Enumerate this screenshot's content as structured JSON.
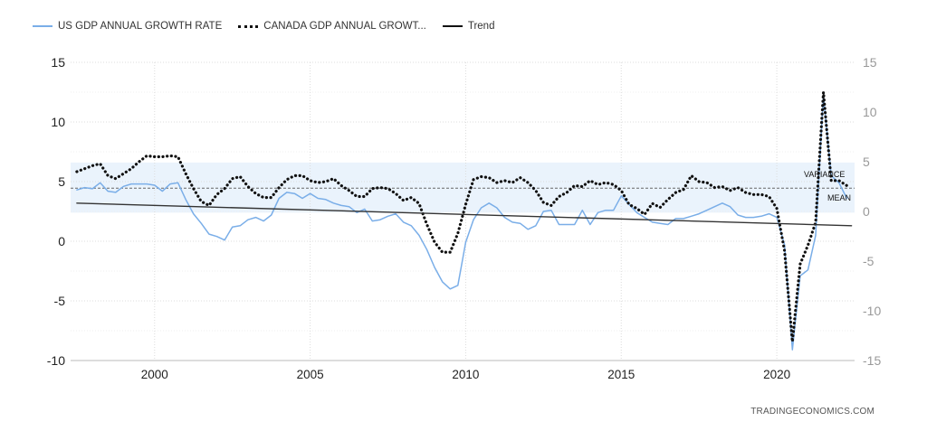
{
  "legend": {
    "us_label": "US GDP ANNUAL GROWTH RATE",
    "canada_label": "CANADA GDP ANNUAL GROWT...",
    "trend_label": "Trend"
  },
  "annotations": {
    "variance": "VARIANCE",
    "mean": "MEAN"
  },
  "source": "TRADINGECONOMICS.COM",
  "colors": {
    "us": "#7aaee8",
    "canada": "#111111",
    "trend": "#333333",
    "variance_band": "#eaf3fc"
  },
  "chart_data": {
    "type": "line",
    "x_axis": {
      "range": [
        1997.3,
        2022.5
      ],
      "ticks": [
        "2000",
        "2005",
        "2010",
        "2015",
        "2020"
      ]
    },
    "y_left": {
      "range": [
        -10,
        15
      ],
      "ticks": [
        "15",
        "10",
        "5",
        "0",
        "-5",
        "-10"
      ]
    },
    "y_right": {
      "range": [
        -15,
        15
      ],
      "ticks": [
        "15",
        "10",
        "5",
        "0",
        "-5",
        "-10",
        "-15"
      ]
    },
    "grid": true,
    "legend_position": "top-left",
    "series": [
      {
        "name": "US GDP ANNUAL GROWTH RATE",
        "axis": "left",
        "points": [
          [
            1997.5,
            4.3
          ],
          [
            1997.75,
            4.5
          ],
          [
            1998.0,
            4.4
          ],
          [
            1998.25,
            4.9
          ],
          [
            1998.5,
            4.2
          ],
          [
            1998.75,
            4.1
          ],
          [
            1999.0,
            4.6
          ],
          [
            1999.25,
            4.8
          ],
          [
            1999.5,
            4.8
          ],
          [
            1999.75,
            4.8
          ],
          [
            2000.0,
            4.7
          ],
          [
            2000.25,
            4.2
          ],
          [
            2000.5,
            4.8
          ],
          [
            2000.75,
            4.9
          ],
          [
            2001.0,
            3.5
          ],
          [
            2001.25,
            2.3
          ],
          [
            2001.5,
            1.5
          ],
          [
            2001.75,
            0.6
          ],
          [
            2002.0,
            0.4
          ],
          [
            2002.25,
            0.1
          ],
          [
            2002.5,
            1.2
          ],
          [
            2002.75,
            1.3
          ],
          [
            2003.0,
            1.8
          ],
          [
            2003.25,
            2.0
          ],
          [
            2003.5,
            1.7
          ],
          [
            2003.75,
            2.2
          ],
          [
            2004.0,
            3.6
          ],
          [
            2004.25,
            4.1
          ],
          [
            2004.5,
            4.0
          ],
          [
            2004.75,
            3.6
          ],
          [
            2005.0,
            4.0
          ],
          [
            2005.25,
            3.6
          ],
          [
            2005.5,
            3.5
          ],
          [
            2005.75,
            3.2
          ],
          [
            2006.0,
            3.0
          ],
          [
            2006.25,
            2.9
          ],
          [
            2006.5,
            2.4
          ],
          [
            2006.75,
            2.7
          ],
          [
            2007.0,
            1.7
          ],
          [
            2007.25,
            1.8
          ],
          [
            2007.5,
            2.1
          ],
          [
            2007.75,
            2.3
          ],
          [
            2008.0,
            1.6
          ],
          [
            2008.25,
            1.3
          ],
          [
            2008.5,
            0.5
          ],
          [
            2008.75,
            -0.7
          ],
          [
            2009.0,
            -2.2
          ],
          [
            2009.25,
            -3.4
          ],
          [
            2009.5,
            -4.0
          ],
          [
            2009.75,
            -3.7
          ],
          [
            2010.0,
            -0.1
          ],
          [
            2010.25,
            1.8
          ],
          [
            2010.5,
            2.8
          ],
          [
            2010.75,
            3.2
          ],
          [
            2011.0,
            2.8
          ],
          [
            2011.25,
            2.0
          ],
          [
            2011.5,
            1.6
          ],
          [
            2011.75,
            1.5
          ],
          [
            2012.0,
            1.0
          ],
          [
            2012.25,
            1.3
          ],
          [
            2012.5,
            2.5
          ],
          [
            2012.75,
            2.6
          ],
          [
            2013.0,
            1.4
          ],
          [
            2013.25,
            1.4
          ],
          [
            2013.5,
            1.4
          ],
          [
            2013.75,
            2.6
          ],
          [
            2014.0,
            1.4
          ],
          [
            2014.25,
            2.4
          ],
          [
            2014.5,
            2.6
          ],
          [
            2014.75,
            2.6
          ],
          [
            2015.0,
            3.8
          ],
          [
            2015.25,
            3.1
          ],
          [
            2015.5,
            2.4
          ],
          [
            2015.75,
            2.0
          ],
          [
            2016.0,
            1.6
          ],
          [
            2016.25,
            1.5
          ],
          [
            2016.5,
            1.4
          ],
          [
            2016.75,
            1.9
          ],
          [
            2017.0,
            1.9
          ],
          [
            2017.25,
            2.1
          ],
          [
            2017.5,
            2.3
          ],
          [
            2017.75,
            2.6
          ],
          [
            2018.0,
            2.9
          ],
          [
            2018.25,
            3.2
          ],
          [
            2018.5,
            2.9
          ],
          [
            2018.75,
            2.2
          ],
          [
            2019.0,
            2.0
          ],
          [
            2019.25,
            2.0
          ],
          [
            2019.5,
            2.1
          ],
          [
            2019.75,
            2.3
          ],
          [
            2020.0,
            2.0
          ],
          [
            2020.25,
            -0.3
          ],
          [
            2020.5,
            -9.1
          ],
          [
            2020.75,
            -2.9
          ],
          [
            2021.0,
            -2.4
          ],
          [
            2021.25,
            0.5
          ],
          [
            2021.5,
            12.2
          ],
          [
            2021.75,
            5.5
          ],
          [
            2022.0,
            4.9
          ],
          [
            2022.25,
            3.6
          ]
        ]
      },
      {
        "name": "CANADA GDP ANNUAL GROWT...",
        "axis": "right",
        "points": [
          [
            1997.5,
            4.0
          ],
          [
            1997.75,
            4.3
          ],
          [
            1998.0,
            4.6
          ],
          [
            1998.25,
            4.8
          ],
          [
            1998.5,
            3.6
          ],
          [
            1998.75,
            3.3
          ],
          [
            1999.0,
            3.8
          ],
          [
            1999.25,
            4.3
          ],
          [
            1999.5,
            5.0
          ],
          [
            1999.75,
            5.6
          ],
          [
            2000.0,
            5.5
          ],
          [
            2000.25,
            5.5
          ],
          [
            2000.5,
            5.6
          ],
          [
            2000.75,
            5.5
          ],
          [
            2001.0,
            3.8
          ],
          [
            2001.25,
            2.3
          ],
          [
            2001.5,
            1.0
          ],
          [
            2001.75,
            0.6
          ],
          [
            2002.0,
            1.7
          ],
          [
            2002.25,
            2.3
          ],
          [
            2002.5,
            3.3
          ],
          [
            2002.75,
            3.5
          ],
          [
            2003.0,
            2.5
          ],
          [
            2003.25,
            1.8
          ],
          [
            2003.5,
            1.4
          ],
          [
            2003.75,
            1.4
          ],
          [
            2004.0,
            2.4
          ],
          [
            2004.25,
            3.2
          ],
          [
            2004.5,
            3.6
          ],
          [
            2004.75,
            3.6
          ],
          [
            2005.0,
            3.1
          ],
          [
            2005.25,
            2.9
          ],
          [
            2005.5,
            3.0
          ],
          [
            2005.75,
            3.3
          ],
          [
            2006.0,
            2.6
          ],
          [
            2006.25,
            2.1
          ],
          [
            2006.5,
            1.5
          ],
          [
            2006.75,
            1.5
          ],
          [
            2007.0,
            2.3
          ],
          [
            2007.25,
            2.4
          ],
          [
            2007.5,
            2.3
          ],
          [
            2007.75,
            1.8
          ],
          [
            2008.0,
            1.1
          ],
          [
            2008.25,
            1.4
          ],
          [
            2008.5,
            0.8
          ],
          [
            2008.75,
            -1.3
          ],
          [
            2009.0,
            -3.1
          ],
          [
            2009.25,
            -4.1
          ],
          [
            2009.5,
            -4.1
          ],
          [
            2009.75,
            -2.2
          ],
          [
            2010.0,
            0.7
          ],
          [
            2010.25,
            3.2
          ],
          [
            2010.5,
            3.5
          ],
          [
            2010.75,
            3.4
          ],
          [
            2011.0,
            2.9
          ],
          [
            2011.25,
            3.1
          ],
          [
            2011.5,
            2.9
          ],
          [
            2011.75,
            3.4
          ],
          [
            2012.0,
            2.9
          ],
          [
            2012.25,
            2.1
          ],
          [
            2012.5,
            0.9
          ],
          [
            2012.75,
            0.6
          ],
          [
            2013.0,
            1.5
          ],
          [
            2013.25,
            1.9
          ],
          [
            2013.5,
            2.6
          ],
          [
            2013.75,
            2.5
          ],
          [
            2014.0,
            3.1
          ],
          [
            2014.25,
            2.7
          ],
          [
            2014.5,
            2.9
          ],
          [
            2014.75,
            2.7
          ],
          [
            2015.0,
            2.1
          ],
          [
            2015.25,
            0.7
          ],
          [
            2015.5,
            0.3
          ],
          [
            2015.75,
            -0.3
          ],
          [
            2016.0,
            0.8
          ],
          [
            2016.25,
            0.4
          ],
          [
            2016.5,
            1.2
          ],
          [
            2016.75,
            1.9
          ],
          [
            2017.0,
            2.2
          ],
          [
            2017.25,
            3.6
          ],
          [
            2017.5,
            3.0
          ],
          [
            2017.75,
            2.9
          ],
          [
            2018.0,
            2.4
          ],
          [
            2018.25,
            2.5
          ],
          [
            2018.5,
            2.1
          ],
          [
            2018.75,
            2.4
          ],
          [
            2019.0,
            1.9
          ],
          [
            2019.25,
            1.7
          ],
          [
            2019.5,
            1.7
          ],
          [
            2019.75,
            1.5
          ],
          [
            2020.0,
            0.3
          ],
          [
            2020.25,
            -4.0
          ],
          [
            2020.5,
            -13.1
          ],
          [
            2020.75,
            -5.3
          ],
          [
            2021.0,
            -3.4
          ],
          [
            2021.25,
            -1.1
          ],
          [
            2021.5,
            12.0
          ],
          [
            2021.75,
            3.1
          ],
          [
            2022.0,
            3.1
          ],
          [
            2022.25,
            2.6
          ]
        ]
      },
      {
        "name": "Trend",
        "axis": "left",
        "points": [
          [
            1997.5,
            3.2
          ],
          [
            2022.4,
            1.3
          ]
        ]
      }
    ],
    "variance_band": {
      "axis": "left",
      "from": 2.4,
      "to": 6.6
    },
    "mean_line": {
      "axis": "left",
      "value": 4.45
    }
  }
}
